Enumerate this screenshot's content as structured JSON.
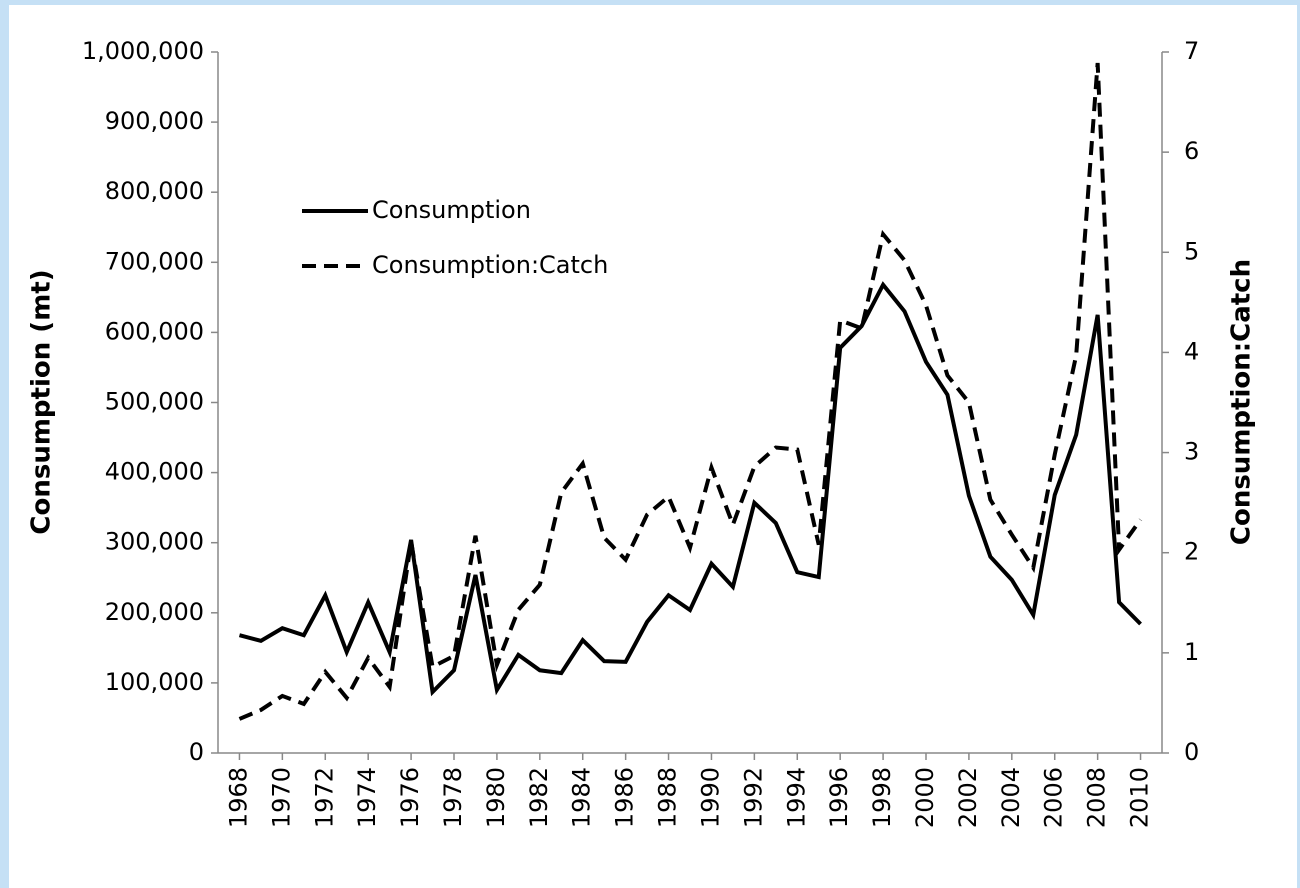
{
  "chart_data": {
    "type": "line",
    "ylabel": "Consumption  (mt)",
    "y2label": "Consumption:Catch",
    "x": [
      1968,
      1969,
      1970,
      1971,
      1972,
      1973,
      1974,
      1975,
      1976,
      1977,
      1978,
      1979,
      1980,
      1981,
      1982,
      1983,
      1984,
      1985,
      1986,
      1987,
      1988,
      1989,
      1990,
      1991,
      1992,
      1993,
      1994,
      1995,
      1996,
      1997,
      1998,
      1999,
      2000,
      2001,
      2002,
      2003,
      2004,
      2005,
      2006,
      2007,
      2008,
      2009,
      2010
    ],
    "xlim": [
      1967,
      2011
    ],
    "xticks": [
      1968,
      1970,
      1972,
      1974,
      1976,
      1978,
      1980,
      1982,
      1984,
      1986,
      1988,
      1990,
      1992,
      1994,
      1996,
      1998,
      2000,
      2002,
      2004,
      2006,
      2008,
      2010
    ],
    "ylim": [
      0,
      1000000
    ],
    "yticks": [
      0,
      {
        "value": 100000,
        "label": "100,000"
      },
      {
        "value": 200000,
        "label": "200,000"
      },
      {
        "value": 300000,
        "label": "300,000"
      },
      {
        "value": 400000,
        "label": "400,000"
      },
      {
        "value": 500000,
        "label": "500,000"
      },
      {
        "value": 600000,
        "label": "600,000"
      },
      {
        "value": 700000,
        "label": "700,000"
      },
      {
        "value": 800000,
        "label": "800,000"
      },
      {
        "value": 900000,
        "label": "900,000"
      },
      {
        "value": 1000000,
        "label": "1,000,000"
      }
    ],
    "y2lim": [
      0,
      7
    ],
    "y2ticks": [
      0,
      1,
      2,
      3,
      4,
      5,
      6,
      7
    ],
    "series": [
      {
        "name": "Consumption",
        "color": "#000000",
        "line_style": "solid",
        "values": [
          168000,
          160000,
          178000,
          168000,
          225000,
          144000,
          215000,
          144000,
          304000,
          87000,
          118000,
          254000,
          90000,
          140000,
          118000,
          114000,
          161000,
          131000,
          130000,
          187000,
          225000,
          204000,
          270000,
          237000,
          357000,
          328000,
          258000,
          251000,
          578000,
          609000,
          668000,
          630000,
          558000,
          511000,
          367000,
          280000,
          247000,
          197000,
          368000,
          454000,
          625000,
          215000,
          184000
        ]
      },
      {
        "name": "Consumption:Catch",
        "color": "#000000",
        "line_style": "dashed",
        "axis": "y2",
        "values": [
          0.34,
          0.43,
          0.57,
          0.49,
          0.81,
          0.55,
          0.95,
          0.66,
          2.11,
          0.86,
          0.97,
          2.17,
          0.88,
          1.43,
          1.68,
          2.6,
          2.89,
          2.15,
          1.93,
          2.38,
          2.56,
          2.05,
          2.85,
          2.28,
          2.86,
          3.05,
          3.03,
          2.08,
          4.32,
          4.24,
          5.18,
          4.92,
          4.47,
          3.77,
          3.5,
          2.53,
          2.18,
          1.85,
          2.98,
          3.97,
          6.89,
          2.03,
          2.33
        ]
      }
    ]
  }
}
